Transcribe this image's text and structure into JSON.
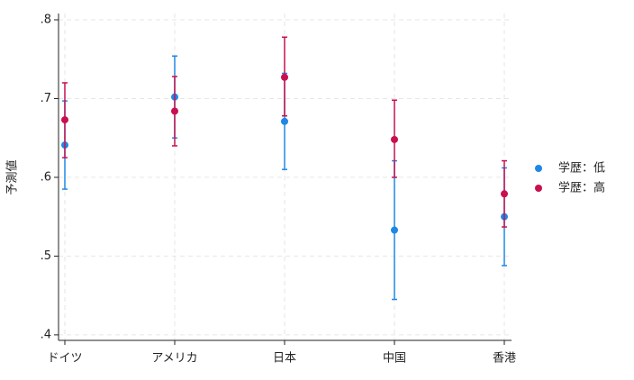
{
  "chart_data": {
    "type": "errorbar",
    "y_label": "予測値",
    "categories": [
      "ドイツ",
      "アメリカ",
      "日本",
      "中国",
      "香港"
    ],
    "series": [
      {
        "name": "学歴：低",
        "color": "#1f88e5",
        "values": [
          0.641,
          0.702,
          0.671,
          0.533,
          0.55
        ],
        "lower": [
          0.585,
          0.65,
          0.61,
          0.445,
          0.488
        ],
        "upper": [
          0.697,
          0.754,
          0.732,
          0.621,
          0.612
        ]
      },
      {
        "name": "学歴：高",
        "color": "#c8104f",
        "values": [
          0.673,
          0.684,
          0.727,
          0.648,
          0.579
        ],
        "lower": [
          0.625,
          0.64,
          0.678,
          0.6,
          0.537
        ],
        "upper": [
          0.72,
          0.728,
          0.778,
          0.698,
          0.621
        ]
      }
    ],
    "ylim": [
      0.393,
      0.808
    ],
    "yticks": [
      {
        "value": 0.4,
        "label": ".4"
      },
      {
        "value": 0.5,
        "label": ".5"
      },
      {
        "value": 0.6,
        "label": ".6"
      },
      {
        "value": 0.7,
        "label": ".7"
      },
      {
        "value": 0.8,
        "label": ".8"
      }
    ],
    "grid": true,
    "legend": "right"
  }
}
